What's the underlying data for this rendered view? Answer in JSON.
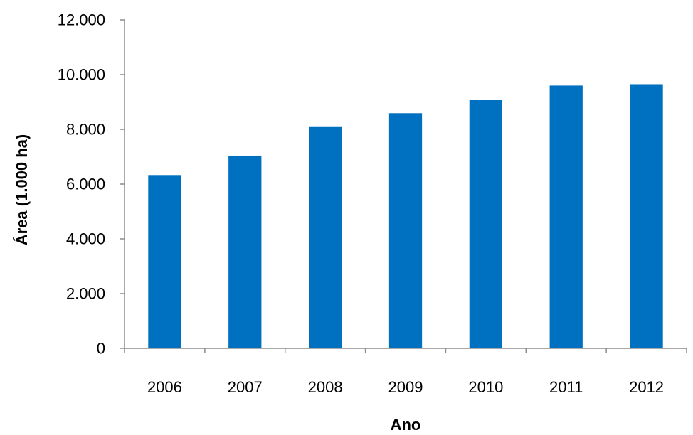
{
  "chart_data": {
    "type": "bar",
    "title": "",
    "xlabel": "Ano",
    "ylabel": "Área (1.000 ha)",
    "categories": [
      "2006",
      "2007",
      "2008",
      "2009",
      "2010",
      "2011",
      "2012"
    ],
    "series": [
      {
        "values": [
          6330,
          7040,
          8110,
          8590,
          9070,
          9600,
          9650
        ],
        "color": "#0070c0"
      }
    ],
    "ylim": [
      0,
      12000
    ],
    "yticks": [
      0,
      2000,
      4000,
      6000,
      8000,
      10000,
      12000
    ],
    "ytick_labels": [
      "0",
      "2.000",
      "4.000",
      "6.000",
      "8.000",
      "10.000",
      "12.000"
    ],
    "grid": false,
    "legend": "none"
  }
}
